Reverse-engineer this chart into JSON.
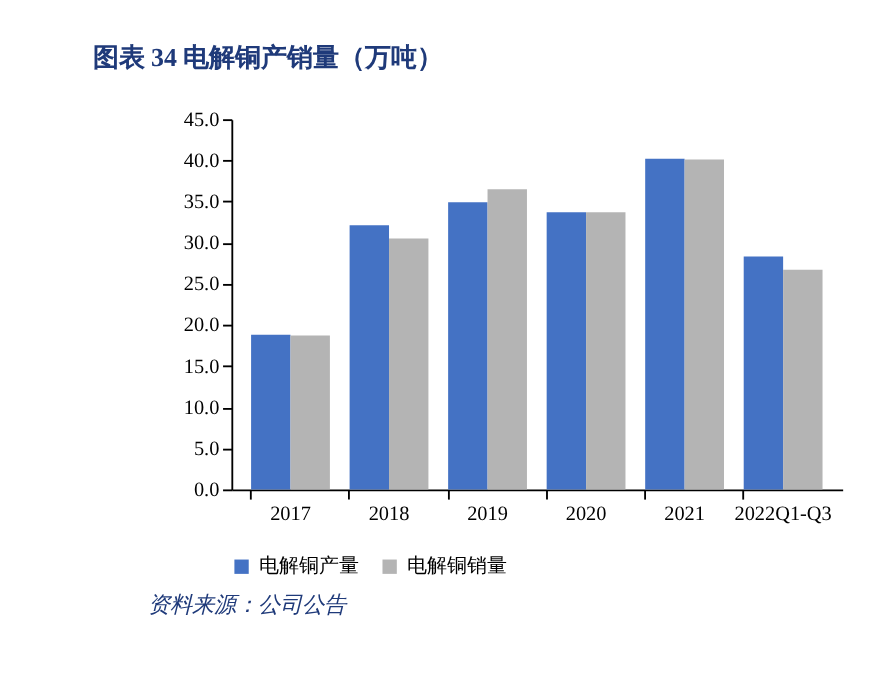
{
  "chart_data": {
    "type": "bar",
    "title": "图表 34   电解铜产销量（万吨）",
    "categories": [
      "2017",
      "2018",
      "2019",
      "2020",
      "2021",
      "2022Q1-Q3"
    ],
    "series": [
      {
        "name": "电解铜产量",
        "color": "#4472c4",
        "values": [
          18.8,
          32.1,
          34.9,
          33.7,
          40.2,
          28.3
        ]
      },
      {
        "name": "电解铜销量",
        "color": "#b4b4b4",
        "values": [
          18.7,
          30.5,
          36.5,
          33.7,
          40.1,
          26.7
        ]
      }
    ],
    "ylim": [
      0,
      45
    ],
    "yticks": [
      {
        "value": 0,
        "label": "0.0"
      },
      {
        "value": 5,
        "label": "5.0"
      },
      {
        "value": 10,
        "label": "10.0"
      },
      {
        "value": 15,
        "label": "15.0"
      },
      {
        "value": 20,
        "label": "20.0"
      },
      {
        "value": 25,
        "label": "25.0"
      },
      {
        "value": 30,
        "label": "30.0"
      },
      {
        "value": 35,
        "label": "35.0"
      },
      {
        "value": 40,
        "label": "40.0"
      },
      {
        "value": 45,
        "label": "45.0"
      }
    ],
    "grid": false,
    "legend": "bottom",
    "annotations": [
      "资料来源：公司公告"
    ]
  }
}
